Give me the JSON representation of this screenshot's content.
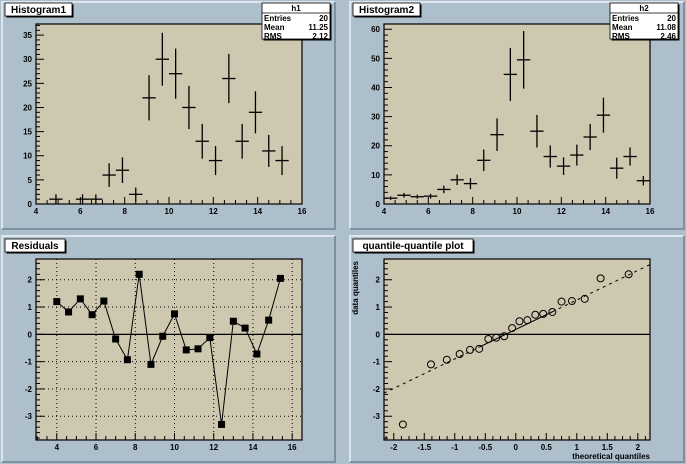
{
  "colors": {
    "canvas": "#aebfcc",
    "frame_fill": "#cdc8af",
    "pad_shadow": "#7d91a2",
    "pad_light": "#dde6ee",
    "marker": "#000000"
  },
  "chart_data": [
    {
      "type": "histogram-errorbars",
      "title": "Histogram1",
      "xlim": [
        4,
        16
      ],
      "ylim": [
        0,
        37.3
      ],
      "xticks": [
        4,
        6,
        8,
        10,
        12,
        14,
        16
      ],
      "yticks": [
        0,
        5,
        10,
        15,
        20,
        25,
        30,
        35
      ],
      "bin_width": 0.6,
      "x": [
        4.9,
        6.1,
        6.7,
        7.3,
        7.9,
        8.5,
        9.1,
        9.7,
        10.3,
        10.9,
        11.5,
        12.1,
        12.7,
        13.3,
        13.9,
        14.5,
        15.1
      ],
      "y": [
        1,
        1,
        1,
        6,
        7,
        2,
        22,
        30,
        27,
        20,
        13,
        9,
        26,
        13,
        19,
        11,
        9
      ],
      "yerr": [
        1,
        1,
        1,
        2.45,
        2.65,
        1.41,
        4.69,
        5.48,
        5.2,
        4.47,
        3.61,
        3,
        5.1,
        3.61,
        4.36,
        3.32,
        3
      ],
      "stats": {
        "name": "h1",
        "rows": [
          {
            "label": "Entries",
            "value": "20"
          },
          {
            "label": "Mean",
            "value": "11.25"
          },
          {
            "label": "RMS",
            "value": "2.12"
          }
        ]
      }
    },
    {
      "type": "histogram-errorbars",
      "title": "Histogram2",
      "xlim": [
        4,
        16
      ],
      "ylim": [
        0,
        61.8
      ],
      "xticks": [
        4,
        6,
        8,
        10,
        12,
        14,
        16
      ],
      "yticks": [
        0,
        10,
        20,
        30,
        40,
        50,
        60
      ],
      "bin_width": 0.6,
      "x": [
        4.3,
        4.9,
        5.5,
        6.1,
        6.7,
        7.3,
        7.9,
        8.5,
        9.1,
        9.7,
        10.3,
        10.9,
        11.5,
        12.1,
        12.7,
        13.3,
        13.9,
        14.5,
        15.1,
        15.7
      ],
      "y": [
        2,
        3,
        2.5,
        2.7,
        5,
        8.3,
        7,
        15,
        23.8,
        44.5,
        49.5,
        25,
        16.3,
        13,
        16.8,
        23,
        30.5,
        12.3,
        16.3,
        8
      ],
      "yerr": [
        0.6,
        0.8,
        0.7,
        0.8,
        1.3,
        1.8,
        1.9,
        3.7,
        5.6,
        9.1,
        9.9,
        5.6,
        3.8,
        3.0,
        3.6,
        4.5,
        6.0,
        3.6,
        3.1,
        1.6
      ],
      "stats": {
        "name": "h2",
        "rows": [
          {
            "label": "Entries",
            "value": "20"
          },
          {
            "label": "Mean",
            "value": "11.08"
          },
          {
            "label": "RMS",
            "value": "2.46"
          }
        ]
      }
    },
    {
      "type": "line",
      "title": "Residuals",
      "xlim": [
        2.94,
        16.5
      ],
      "ylim": [
        -3.87,
        2.76
      ],
      "xticks": [
        4,
        6,
        8,
        10,
        12,
        14,
        16
      ],
      "yticks": [
        -3,
        -2,
        -1,
        0,
        1,
        2
      ],
      "grid": true,
      "marker": "square",
      "x": [
        4.0,
        4.6,
        5.2,
        5.8,
        6.4,
        7.0,
        7.6,
        8.2,
        8.8,
        9.4,
        10.0,
        10.6,
        11.2,
        11.8,
        12.4,
        13.0,
        13.6,
        14.2,
        14.8,
        15.4
      ],
      "y": [
        1.2,
        0.82,
        1.3,
        0.72,
        1.22,
        -0.17,
        -0.93,
        2.2,
        -1.1,
        -0.07,
        0.75,
        -0.57,
        -0.53,
        -0.12,
        -3.3,
        0.48,
        0.23,
        -0.72,
        0.52,
        2.05
      ]
    },
    {
      "type": "scatter",
      "title": "quantile-quantile plot",
      "xlabel": "theoretical quantiles",
      "ylabel": "data quantiles",
      "xlim": [
        -2.16,
        2.2
      ],
      "ylim": [
        -3.87,
        2.76
      ],
      "xticks": [
        -2,
        -1.5,
        -1,
        -0.5,
        0,
        0.5,
        1,
        1.5,
        2
      ],
      "yticks": [
        -3,
        -2,
        -1,
        0,
        1,
        2
      ],
      "marker": "open-circle",
      "x": [
        -1.85,
        -1.39,
        -1.13,
        -0.92,
        -0.75,
        -0.6,
        -0.45,
        -0.32,
        -0.19,
        -0.06,
        0.06,
        0.19,
        0.32,
        0.45,
        0.6,
        0.75,
        0.92,
        1.13,
        1.39,
        1.85
      ],
      "y": [
        -3.3,
        -1.1,
        -0.93,
        -0.72,
        -0.57,
        -0.53,
        -0.17,
        -0.12,
        -0.07,
        0.23,
        0.48,
        0.52,
        0.72,
        0.75,
        0.82,
        1.2,
        1.22,
        1.3,
        2.05,
        2.2
      ],
      "reference_line": {
        "slope": 1.08,
        "intercept": 0.18,
        "solid_range": [
          -0.6,
          0.6
        ]
      }
    }
  ]
}
